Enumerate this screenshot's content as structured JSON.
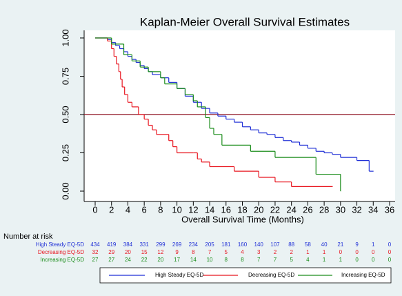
{
  "chart_data": {
    "type": "step",
    "title": "Kaplan-Meier Overall Survival Estimates",
    "xlabel": "Overall Survival Time (Months)",
    "xlim": [
      0,
      36
    ],
    "xticks": [
      0,
      2,
      4,
      6,
      8,
      10,
      12,
      14,
      16,
      18,
      20,
      22,
      24,
      26,
      28,
      30,
      32,
      34,
      36
    ],
    "ylim": [
      0,
      1
    ],
    "yticks": [
      {
        "value": 0,
        "label": "0.00"
      },
      {
        "value": 0.25,
        "label": "0.25"
      },
      {
        "value": 0.5,
        "label": "0.50"
      },
      {
        "value": 0.75,
        "label": "0.75"
      },
      {
        "value": 1,
        "label": "1.00"
      }
    ],
    "reference_line": {
      "value": 0.5,
      "color": "#8b0a1a"
    },
    "risk_title": "Number at risk",
    "series": [
      {
        "name": "High Steady EQ-5D",
        "color": "#1f2fd6",
        "x": [
          0,
          1.5,
          2,
          2.5,
          3,
          3.5,
          4,
          4.5,
          5,
          5.5,
          6,
          6.5,
          7,
          8,
          9,
          10,
          11,
          12,
          13,
          14,
          15,
          16,
          17,
          18,
          19,
          20,
          21,
          22,
          23,
          24,
          25,
          26,
          27,
          28,
          29,
          30,
          32,
          33.5,
          34
        ],
        "values": [
          1,
          0.99,
          0.97,
          0.95,
          0.93,
          0.91,
          0.88,
          0.86,
          0.84,
          0.82,
          0.8,
          0.78,
          0.76,
          0.74,
          0.71,
          0.67,
          0.62,
          0.58,
          0.54,
          0.51,
          0.49,
          0.47,
          0.45,
          0.42,
          0.4,
          0.38,
          0.37,
          0.35,
          0.33,
          0.32,
          0.3,
          0.28,
          0.26,
          0.25,
          0.24,
          0.22,
          0.2,
          0.13,
          0.13
        ],
        "at_risk": [
          434,
          419,
          384,
          331,
          299,
          269,
          234,
          205,
          181,
          160,
          140,
          107,
          88,
          58,
          40,
          21,
          9,
          1,
          0
        ]
      },
      {
        "name": "Decreasing EQ-5D",
        "color": "#e8141e",
        "x": [
          0,
          1.5,
          2,
          2.3,
          2.6,
          2.9,
          3.1,
          3.3,
          3.6,
          4,
          4.5,
          5.3,
          6,
          6.5,
          7,
          7.5,
          9,
          9.5,
          10,
          12,
          12.5,
          13,
          14,
          17,
          20,
          22,
          24,
          29
        ],
        "values": [
          1,
          0.98,
          0.93,
          0.88,
          0.83,
          0.78,
          0.73,
          0.68,
          0.63,
          0.58,
          0.55,
          0.5,
          0.47,
          0.43,
          0.4,
          0.37,
          0.33,
          0.29,
          0.25,
          0.25,
          0.21,
          0.19,
          0.16,
          0.13,
          0.09,
          0.06,
          0.03,
          0.03
        ],
        "at_risk": [
          32,
          29,
          20,
          15,
          12,
          9,
          8,
          7,
          5,
          4,
          3,
          2,
          2,
          1,
          1,
          0,
          0,
          0,
          0
        ]
      },
      {
        "name": "Increasing EQ-5D",
        "color": "#1a8c1a",
        "x": [
          0,
          2,
          3.5,
          4.5,
          5.5,
          6.5,
          8,
          8.5,
          10,
          11,
          12,
          12.5,
          13.5,
          14,
          14.5,
          15.5,
          19,
          22,
          27,
          30
        ],
        "values": [
          1,
          0.96,
          0.89,
          0.85,
          0.81,
          0.78,
          0.74,
          0.7,
          0.67,
          0.63,
          0.59,
          0.55,
          0.48,
          0.41,
          0.37,
          0.3,
          0.26,
          0.22,
          0.11,
          0
        ],
        "at_risk": [
          27,
          27,
          24,
          22,
          20,
          17,
          14,
          10,
          8,
          8,
          7,
          7,
          5,
          4,
          1,
          1,
          0,
          0,
          0
        ]
      }
    ]
  }
}
